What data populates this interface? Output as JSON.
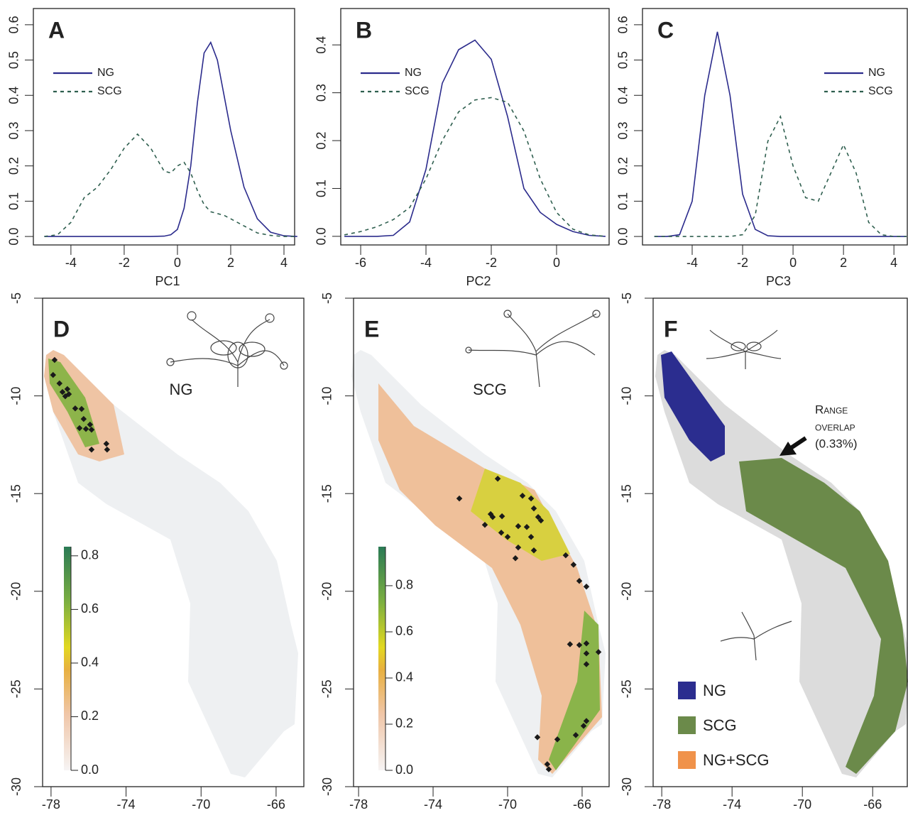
{
  "chart_data": [
    {
      "type": "line",
      "panel_label": "A",
      "xlabel": "PC1",
      "legend": "upper left",
      "x": [
        -5,
        -4.5,
        -4,
        -3.5,
        -3,
        -2.5,
        -2,
        -1.5,
        -1,
        -0.5,
        -0.25,
        0,
        0.25,
        0.5,
        0.75,
        1,
        1.25,
        1.5,
        1.75,
        2,
        2.5,
        3,
        3.5,
        4,
        4.5
      ],
      "series": [
        {
          "name": "NG",
          "color": "#2b2b8c",
          "linestyle": "solid",
          "values": [
            0,
            0,
            0,
            0,
            0,
            0,
            0,
            0,
            0,
            0.001,
            0.005,
            0.02,
            0.08,
            0.2,
            0.38,
            0.52,
            0.55,
            0.5,
            0.4,
            0.3,
            0.14,
            0.05,
            0.012,
            0.002,
            0
          ]
        },
        {
          "name": "SCG",
          "color": "#2f5f4f",
          "linestyle": "dashed",
          "values": [
            0,
            0.005,
            0.04,
            0.11,
            0.14,
            0.19,
            0.25,
            0.29,
            0.25,
            0.185,
            0.18,
            0.2,
            0.21,
            0.18,
            0.13,
            0.09,
            0.07,
            0.065,
            0.06,
            0.05,
            0.03,
            0.01,
            0.003,
            0,
            0
          ]
        }
      ],
      "xlim": [
        -5.41,
        4.4
      ],
      "ylim": [
        -0.024,
        0.646
      ],
      "xticks": [
        -4,
        -2,
        0,
        2,
        4
      ],
      "yticks": [
        {
          "value": 0,
          "label": "0.0"
        },
        0.1,
        0.2,
        0.3,
        0.4,
        0.5,
        0.6
      ]
    },
    {
      "type": "line",
      "panel_label": "B",
      "xlabel": "PC2",
      "legend": "upper left",
      "x": [
        -6.5,
        -6,
        -5.5,
        -5,
        -4.5,
        -4,
        -3.5,
        -3,
        -2.5,
        -2,
        -1.5,
        -1,
        -0.5,
        0,
        0.5,
        1,
        1.5
      ],
      "series": [
        {
          "name": "NG",
          "color": "#2b2b8c",
          "linestyle": "solid",
          "values": [
            0,
            0,
            0,
            0.002,
            0.03,
            0.14,
            0.32,
            0.39,
            0.41,
            0.37,
            0.25,
            0.1,
            0.05,
            0.025,
            0.01,
            0.002,
            0
          ]
        },
        {
          "name": "SCG",
          "color": "#2f5f4f",
          "linestyle": "dashed",
          "values": [
            0.003,
            0.01,
            0.02,
            0.035,
            0.06,
            0.12,
            0.2,
            0.26,
            0.285,
            0.29,
            0.28,
            0.22,
            0.12,
            0.05,
            0.015,
            0.003,
            0
          ]
        }
      ],
      "xlim": [
        -6.61,
        1.61
      ],
      "ylim": [
        -0.018,
        0.476
      ],
      "xticks": [
        -6,
        -4,
        -2,
        0
      ],
      "yticks": [
        {
          "value": 0,
          "label": "0.0"
        },
        0.1,
        0.2,
        0.3,
        0.4
      ]
    },
    {
      "type": "line",
      "panel_label": "C",
      "xlabel": "PC3",
      "legend": "upper right",
      "x": [
        -5.5,
        -5,
        -4.5,
        -4,
        -3.5,
        -3,
        -2.5,
        -2,
        -1.5,
        -1,
        -0.5,
        0,
        0.5,
        1,
        1.5,
        2,
        2.5,
        3,
        3.5,
        4,
        4.5
      ],
      "series": [
        {
          "name": "NG",
          "color": "#2b2b8c",
          "linestyle": "solid",
          "values": [
            0,
            0,
            0.005,
            0.1,
            0.4,
            0.58,
            0.4,
            0.12,
            0.02,
            0.002,
            0,
            0,
            0,
            0,
            0,
            0,
            0,
            0,
            0,
            0,
            0
          ]
        },
        {
          "name": "SCG",
          "color": "#2f5f4f",
          "linestyle": "dashed",
          "values": [
            0,
            0,
            0,
            0,
            0,
            0,
            0,
            0.005,
            0.06,
            0.27,
            0.34,
            0.2,
            0.11,
            0.1,
            0.18,
            0.26,
            0.18,
            0.04,
            0.005,
            0,
            0
          ]
        }
      ],
      "xlim": [
        -5.97,
        4.53
      ],
      "ylim": [
        -0.024,
        0.646
      ],
      "xticks": [
        -4,
        -2,
        0,
        2,
        4
      ],
      "yticks": [
        {
          "value": 0,
          "label": "0.0"
        },
        0.1,
        0.2,
        0.3,
        0.4,
        0.5,
        0.6
      ]
    },
    {
      "type": "map",
      "panel_label": "D",
      "label": "NG",
      "xlim": [
        -78.45,
        -64.52
      ],
      "ylim": [
        -30,
        -5
      ],
      "xticks": [
        -78,
        -74,
        -70,
        -66
      ],
      "yticks": [
        -5,
        -10,
        -15,
        -20,
        -25,
        -30
      ],
      "points": {
        "color": "#1a1a1a",
        "x": [
          -77.81,
          -77.89,
          -77.55,
          -77.39,
          -77.13,
          -77.24,
          -77.05,
          -76.71,
          -76.37,
          -76.26,
          -76.48,
          -76.14,
          -75.92,
          -75.84,
          -75.05,
          -75.01,
          -75.84
        ],
        "y": [
          -8.16,
          -8.93,
          -9.36,
          -9.8,
          -9.65,
          -10.02,
          -9.91,
          -10.64,
          -10.67,
          -11.18,
          -11.65,
          -11.69,
          -11.47,
          -11.73,
          -12.45,
          -12.75,
          -12.75
        ]
      },
      "colorbar": {
        "lim": [
          0,
          0.834
        ],
        "ticks": [
          {
            "value": 0,
            "label": "0.0"
          },
          0.2,
          0.4,
          0.6,
          0.8
        ]
      }
    },
    {
      "type": "map",
      "panel_label": "E",
      "label": "SCG",
      "xlim": [
        -78.27,
        -64.55
      ],
      "ylim": [
        -30,
        -5
      ],
      "xticks": [
        -78,
        -74,
        -70,
        -66
      ],
      "yticks": [
        -5,
        -10,
        -15,
        -20,
        -25,
        -30
      ],
      "points": {
        "color": "#1a1a1a",
        "x": [
          -70.53,
          -72.59,
          -71.22,
          -70.91,
          -70.8,
          -70.3,
          -70.34,
          -70,
          -69.43,
          -68.97,
          -69.2,
          -68.74,
          -68.59,
          -68.36,
          -68.21,
          -68.74,
          -69.43,
          -68.59,
          -69.58,
          -66.88,
          -66.46,
          -66.15,
          -65.77,
          -66.65,
          -66.15,
          -65.77,
          -65.12,
          -65.77,
          -65.77,
          -65.77,
          -65.92,
          -66.34,
          -67.33,
          -68.4,
          -67.87,
          -67.79
        ],
        "y": [
          -14.24,
          -15.25,
          -16.6,
          -16.05,
          -16.2,
          -16.16,
          -17,
          -17.22,
          -16.67,
          -16.71,
          -15.11,
          -15.25,
          -15.76,
          -16.2,
          -16.38,
          -17.22,
          -17.76,
          -17.91,
          -18.31,
          -18.16,
          -18.64,
          -19.47,
          -19.76,
          -22.71,
          -22.75,
          -22.67,
          -23.11,
          -23.18,
          -23.73,
          -26.64,
          -26.89,
          -27.36,
          -27.58,
          -27.47,
          -28.85,
          -29.11
        ]
      },
      "colorbar": {
        "lim": [
          0,
          0.969
        ],
        "ticks": [
          {
            "value": 0,
            "label": "0.0"
          },
          0.2,
          0.4,
          0.6,
          0.8
        ]
      }
    },
    {
      "type": "map",
      "panel_label": "F",
      "xlim": [
        -78.49,
        -64.03
      ],
      "ylim": [
        -30,
        -5
      ],
      "xticks": [
        -78,
        -74,
        -70,
        -66
      ],
      "yticks": [
        -5,
        -10,
        -15,
        -20,
        -25,
        -30
      ],
      "legend": [
        {
          "name": "NG",
          "color": "#2b2d8f"
        },
        {
          "name": "SCG",
          "color": "#6b8a4a"
        },
        {
          "name": "NG+SCG",
          "color": "#f0924a"
        }
      ],
      "annotation": [
        "Range",
        "overlap",
        "(0.33%)"
      ]
    }
  ]
}
